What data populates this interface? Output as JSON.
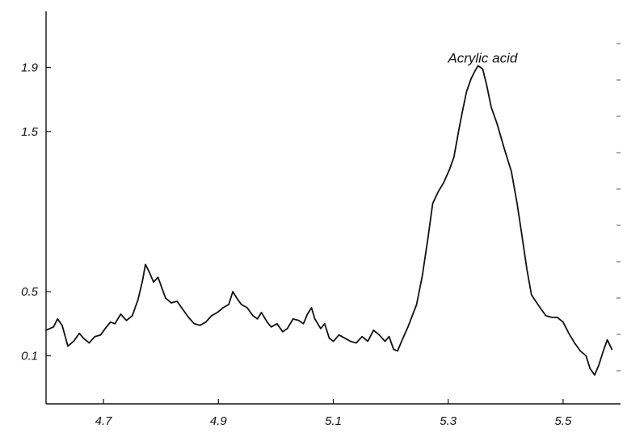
{
  "chart_data": {
    "type": "line",
    "title": "",
    "xlabel": "",
    "ylabel": "",
    "xlim": [
      4.6,
      5.6
    ],
    "ylim": [
      -0.2,
      2.25
    ],
    "grid": false,
    "x_ticks": [
      {
        "value": 4.7,
        "label": "4.7"
      },
      {
        "value": 4.9,
        "label": "4.9"
      },
      {
        "value": 5.1,
        "label": "5.1"
      },
      {
        "value": 5.3,
        "label": "5.3"
      },
      {
        "value": 5.5,
        "label": "5.5"
      }
    ],
    "y_ticks": [
      {
        "value": 0.1,
        "label": "0.1"
      },
      {
        "value": 0.5,
        "label": "0.5"
      },
      {
        "value": 1.5,
        "label": "1.5"
      },
      {
        "value": 1.9,
        "label": "1.9"
      }
    ],
    "annotations": [
      {
        "text": "Acrylic acid",
        "x": 5.36,
        "y": 1.93
      }
    ],
    "series": [
      {
        "color": "#111111",
        "points": [
          [
            4.6,
            0.26
          ],
          [
            4.613,
            0.28
          ],
          [
            4.62,
            0.33
          ],
          [
            4.628,
            0.29
          ],
          [
            4.638,
            0.16
          ],
          [
            4.648,
            0.19
          ],
          [
            4.658,
            0.24
          ],
          [
            4.665,
            0.21
          ],
          [
            4.675,
            0.18
          ],
          [
            4.685,
            0.22
          ],
          [
            4.695,
            0.23
          ],
          [
            4.703,
            0.27
          ],
          [
            4.712,
            0.31
          ],
          [
            4.72,
            0.3
          ],
          [
            4.73,
            0.36
          ],
          [
            4.74,
            0.32
          ],
          [
            4.75,
            0.35
          ],
          [
            4.76,
            0.45
          ],
          [
            4.768,
            0.57
          ],
          [
            4.773,
            0.67
          ],
          [
            4.78,
            0.62
          ],
          [
            4.787,
            0.56
          ],
          [
            4.795,
            0.59
          ],
          [
            4.802,
            0.52
          ],
          [
            4.808,
            0.46
          ],
          [
            4.818,
            0.43
          ],
          [
            4.828,
            0.44
          ],
          [
            4.838,
            0.39
          ],
          [
            4.848,
            0.34
          ],
          [
            4.858,
            0.3
          ],
          [
            4.868,
            0.29
          ],
          [
            4.878,
            0.31
          ],
          [
            4.888,
            0.35
          ],
          [
            4.898,
            0.37
          ],
          [
            4.908,
            0.4
          ],
          [
            4.918,
            0.42
          ],
          [
            4.925,
            0.5
          ],
          [
            4.932,
            0.46
          ],
          [
            4.94,
            0.42
          ],
          [
            4.95,
            0.4
          ],
          [
            4.96,
            0.35
          ],
          [
            4.968,
            0.33
          ],
          [
            4.975,
            0.37
          ],
          [
            4.985,
            0.31
          ],
          [
            4.992,
            0.28
          ],
          [
            5.002,
            0.3
          ],
          [
            5.012,
            0.25
          ],
          [
            5.02,
            0.27
          ],
          [
            5.03,
            0.33
          ],
          [
            5.04,
            0.32
          ],
          [
            5.048,
            0.3
          ],
          [
            5.055,
            0.36
          ],
          [
            5.062,
            0.4
          ],
          [
            5.068,
            0.33
          ],
          [
            5.078,
            0.27
          ],
          [
            5.085,
            0.3
          ],
          [
            5.093,
            0.21
          ],
          [
            5.1,
            0.19
          ],
          [
            5.11,
            0.23
          ],
          [
            5.12,
            0.21
          ],
          [
            5.13,
            0.19
          ],
          [
            5.14,
            0.18
          ],
          [
            5.15,
            0.22
          ],
          [
            5.16,
            0.19
          ],
          [
            5.17,
            0.26
          ],
          [
            5.18,
            0.23
          ],
          [
            5.19,
            0.19
          ],
          [
            5.197,
            0.22
          ],
          [
            5.205,
            0.14
          ],
          [
            5.212,
            0.13
          ],
          [
            5.22,
            0.2
          ],
          [
            5.23,
            0.28
          ],
          [
            5.245,
            0.42
          ],
          [
            5.255,
            0.6
          ],
          [
            5.265,
            0.84
          ],
          [
            5.273,
            1.05
          ],
          [
            5.282,
            1.12
          ],
          [
            5.292,
            1.18
          ],
          [
            5.302,
            1.26
          ],
          [
            5.31,
            1.34
          ],
          [
            5.318,
            1.5
          ],
          [
            5.325,
            1.63
          ],
          [
            5.332,
            1.75
          ],
          [
            5.34,
            1.83
          ],
          [
            5.347,
            1.88
          ],
          [
            5.352,
            1.91
          ],
          [
            5.36,
            1.89
          ],
          [
            5.367,
            1.79
          ],
          [
            5.375,
            1.65
          ],
          [
            5.385,
            1.55
          ],
          [
            5.397,
            1.4
          ],
          [
            5.41,
            1.25
          ],
          [
            5.42,
            1.05
          ],
          [
            5.428,
            0.86
          ],
          [
            5.437,
            0.64
          ],
          [
            5.445,
            0.48
          ],
          [
            5.46,
            0.4
          ],
          [
            5.47,
            0.35
          ],
          [
            5.48,
            0.34
          ],
          [
            5.49,
            0.34
          ],
          [
            5.5,
            0.31
          ],
          [
            5.51,
            0.24
          ],
          [
            5.52,
            0.18
          ],
          [
            5.53,
            0.13
          ],
          [
            5.54,
            0.1
          ],
          [
            5.547,
            0.02
          ],
          [
            5.555,
            -0.02
          ],
          [
            5.562,
            0.04
          ],
          [
            5.57,
            0.13
          ],
          [
            5.577,
            0.2
          ],
          [
            5.585,
            0.14
          ]
        ]
      }
    ]
  }
}
